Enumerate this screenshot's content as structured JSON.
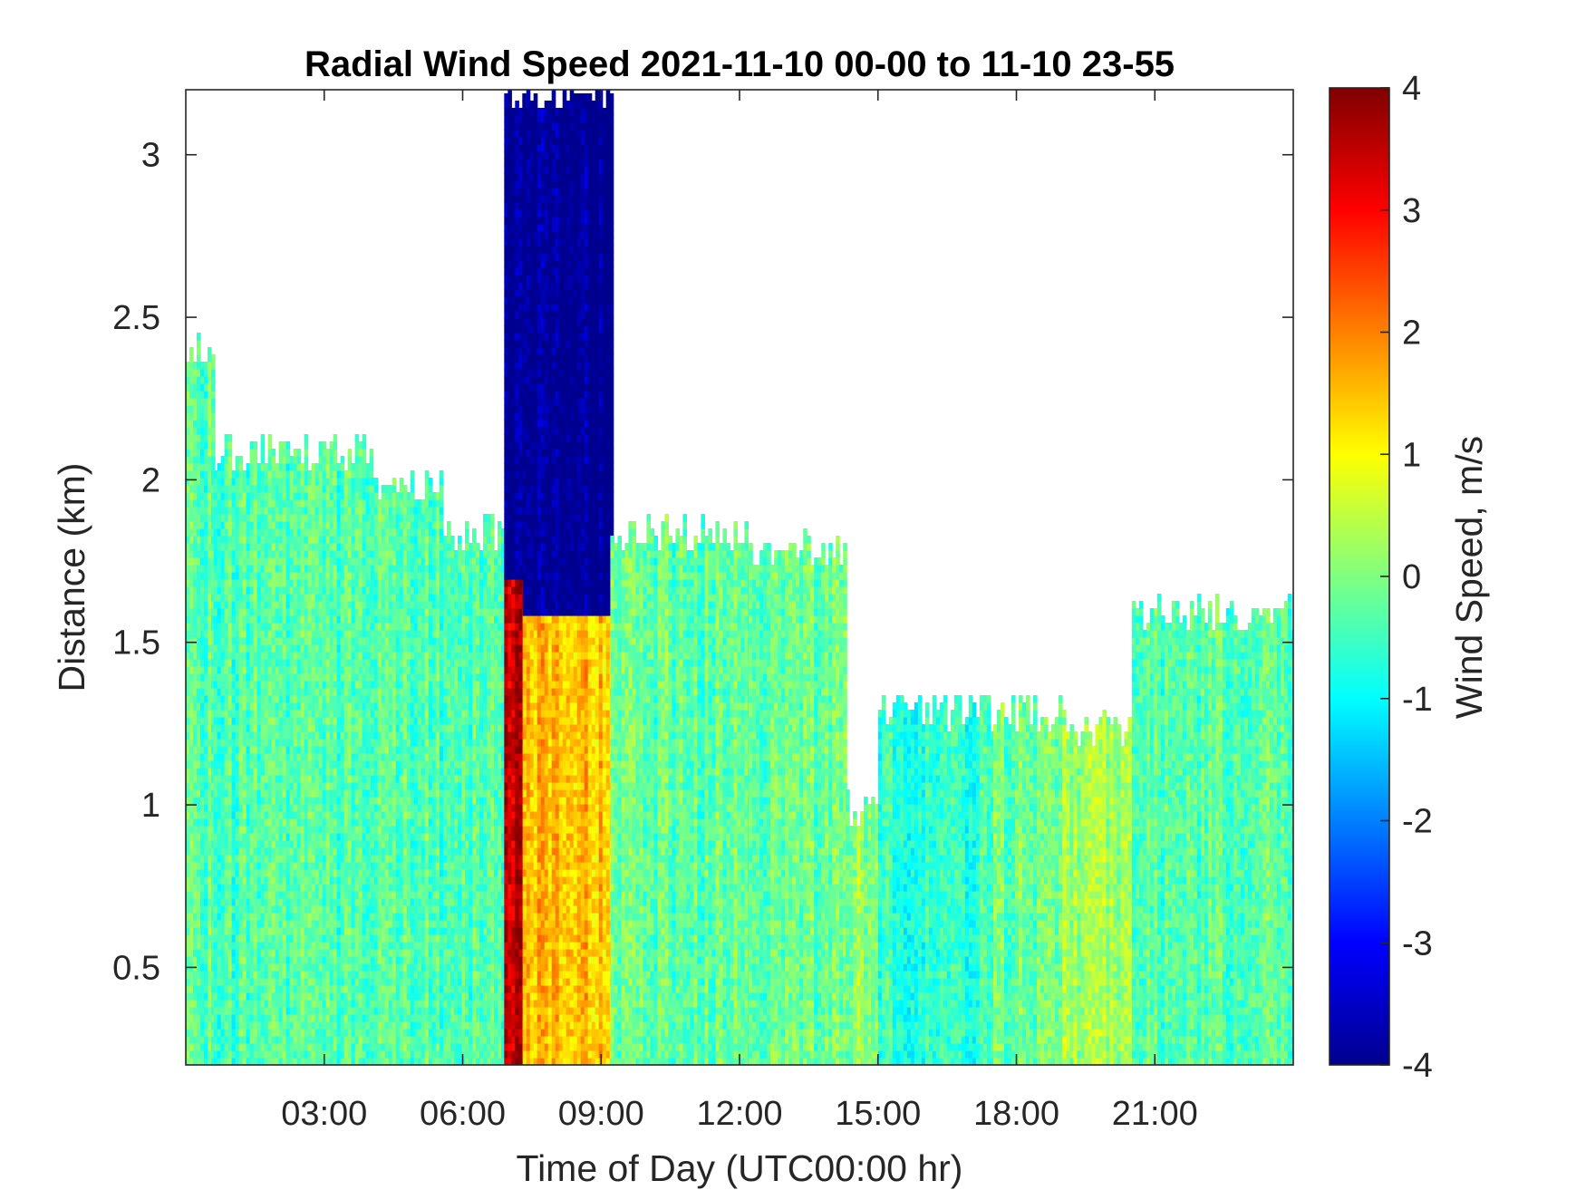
{
  "chart_data": {
    "type": "heatmap",
    "title": "Radial Wind Speed 2021-11-10 00-00 to 11-10 23-55",
    "xlabel": "Time of Day (UTC00:00 hr)",
    "ylabel": "Distance (km)",
    "xlim": [
      0,
      24
    ],
    "ylim": [
      0.2,
      3.2
    ],
    "x_ticks": [
      3,
      6,
      9,
      12,
      15,
      18,
      21
    ],
    "x_tick_labels": [
      "03:00",
      "06:00",
      "09:00",
      "12:00",
      "15:00",
      "18:00",
      "21:00"
    ],
    "y_ticks": [
      0.5,
      1,
      1.5,
      2,
      2.5,
      3
    ],
    "y_tick_labels": [
      "0.5",
      "1",
      "1.5",
      "2",
      "2.5",
      "3"
    ],
    "colorbar": {
      "label": "Wind Speed, m/s",
      "range": [
        -4,
        4
      ],
      "ticks": [
        4,
        3,
        2,
        1,
        0,
        -1,
        -2,
        -3,
        -4
      ],
      "tick_labels": [
        "4",
        "3",
        "2",
        "1",
        "0",
        "-1",
        "-2",
        "-3",
        "-4"
      ],
      "colormap": "jet"
    },
    "colormap_stops": [
      "#00008f",
      "#0000ff",
      "#0080ff",
      "#00ffff",
      "#80ff80",
      "#ffff00",
      "#ff8000",
      "#ff0000",
      "#800000"
    ],
    "grid": false,
    "regions": [
      {
        "x": [
          0.0,
          0.6
        ],
        "top_km": 2.4,
        "mean_ms": -0.3
      },
      {
        "x": [
          0.6,
          4.0
        ],
        "top_km": 2.1,
        "mean_ms": -0.4
      },
      {
        "x": [
          4.0,
          5.5
        ],
        "top_km": 2.0,
        "mean_ms": -0.3
      },
      {
        "x": [
          5.5,
          6.9
        ],
        "top_km": 1.85,
        "mean_ms": -0.4
      },
      {
        "x": [
          6.9,
          7.3
        ],
        "top_km": 3.2,
        "upper_mean_ms": -4.0,
        "lower_mean_ms": 3.5,
        "split_km": 1.7
      },
      {
        "x": [
          7.3,
          9.2
        ],
        "top_km": 3.2,
        "upper_mean_ms": -4.0,
        "lower_mean_ms": 1.5,
        "split_km": 1.6
      },
      {
        "x": [
          9.2,
          12.2
        ],
        "top_km": 1.85,
        "mean_ms": -0.3
      },
      {
        "x": [
          12.2,
          14.3
        ],
        "top_km": 1.8,
        "mean_ms": -0.2
      },
      {
        "x": [
          14.3,
          15.0
        ],
        "top_km": 1.0,
        "mean_ms": 0.1
      },
      {
        "x": [
          15.0,
          17.5
        ],
        "top_km": 1.3,
        "mean_ms": -0.6
      },
      {
        "x": [
          17.5,
          19.0
        ],
        "top_km": 1.3,
        "mean_ms": -0.2
      },
      {
        "x": [
          19.0,
          20.5
        ],
        "top_km": 1.25,
        "mean_ms": 0.2
      },
      {
        "x": [
          20.5,
          24.0
        ],
        "top_km": 1.6,
        "mean_ms": -0.3
      }
    ]
  }
}
